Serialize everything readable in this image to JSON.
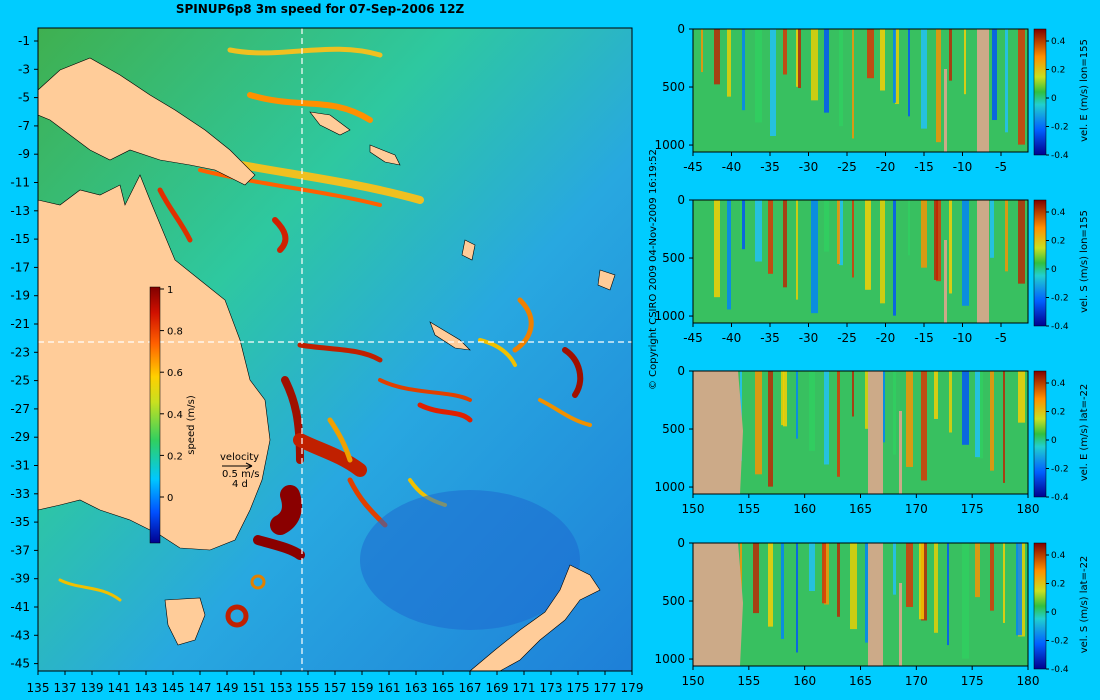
{
  "title": "SPINUP6p8 3m speed for 07-Sep-2006 12Z",
  "copyright": "© Copyright CSIRO 2009   04-Nov-2009 16:19:52",
  "colors": {
    "background": "#00ccff",
    "land": "#ffcc99",
    "mask": "#ccaa88",
    "crosshair": "#ffffff"
  },
  "map": {
    "lat_ticks": [
      "-1",
      "-3",
      "-5",
      "-7",
      "-9",
      "-11",
      "-13",
      "-15",
      "-17",
      "-19",
      "-21",
      "-23",
      "-25",
      "-27",
      "-29",
      "-31",
      "-33",
      "-35",
      "-37",
      "-39",
      "-41",
      "-43",
      "-45"
    ],
    "lon_ticks": [
      "135",
      "137",
      "139",
      "141",
      "143",
      "145",
      "147",
      "149",
      "151",
      "153",
      "155",
      "157",
      "159",
      "161",
      "163",
      "165",
      "167",
      "169",
      "171",
      "173",
      "175",
      "177",
      "179"
    ],
    "colorbar": {
      "label": "speed (m/s)",
      "ticks": [
        "1",
        "0.8",
        "0.6",
        "0.4",
        "0.2",
        "0"
      ]
    },
    "velocity_key": {
      "title": "velocity",
      "speed": "0.5 m/s",
      "duration": "4 d"
    },
    "crosshair": {
      "lon": 155,
      "lat": -22
    }
  },
  "sections": [
    {
      "label": "vel. E (m/s) lon=155",
      "x_ticks": [
        "-45",
        "-40",
        "-35",
        "-30",
        "-25",
        "-20",
        "-15",
        "-10",
        "-5"
      ],
      "y_ticks": [
        "0",
        "500",
        "1000"
      ],
      "cbar_ticks": [
        "0.4",
        "0.2",
        "0",
        "-0.2",
        "-0.4"
      ]
    },
    {
      "label": "vel. S (m/s) lon=155",
      "x_ticks": [
        "-45",
        "-40",
        "-35",
        "-30",
        "-25",
        "-20",
        "-15",
        "-10",
        "-5"
      ],
      "y_ticks": [
        "0",
        "500",
        "1000"
      ],
      "cbar_ticks": [
        "0.4",
        "0.2",
        "0",
        "-0.2",
        "-0.4"
      ]
    },
    {
      "label": "vel. E (m/s) lat=-22",
      "x_ticks": [
        "150",
        "155",
        "160",
        "165",
        "170",
        "175",
        "180"
      ],
      "y_ticks": [
        "0",
        "500",
        "1000"
      ],
      "cbar_ticks": [
        "0.4",
        "0.2",
        "0",
        "-0.2",
        "-0.4"
      ]
    },
    {
      "label": "vel. S (m/s) lat=-22",
      "x_ticks": [
        "150",
        "155",
        "160",
        "165",
        "170",
        "175",
        "180"
      ],
      "y_ticks": [
        "0",
        "500",
        "1000"
      ],
      "cbar_ticks": [
        "0.4",
        "0.2",
        "0",
        "-0.2",
        "-0.4"
      ]
    }
  ]
}
